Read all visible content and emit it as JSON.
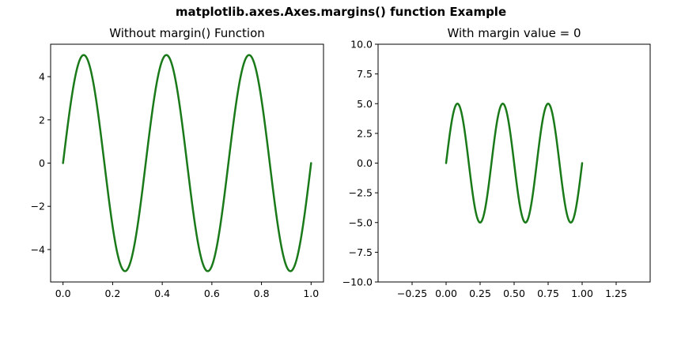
{
  "figure": {
    "suptitle": "matplotlib.axes.Axes.margins() function Example"
  },
  "colors": {
    "line": "#1a7a1a",
    "background": "#ffffff"
  },
  "chart_data": [
    {
      "type": "line",
      "title": "Without margin() Function",
      "xlabel": "",
      "ylabel": "",
      "xlim": [
        -0.05,
        1.05
      ],
      "ylim": [
        -5.5,
        5.5
      ],
      "xticks": [
        0.0,
        0.2,
        0.4,
        0.6,
        0.8,
        1.0
      ],
      "xtick_labels": [
        "0.0",
        "0.2",
        "0.4",
        "0.6",
        "0.8",
        "1.0"
      ],
      "yticks": [
        -4,
        -2,
        0,
        2,
        4
      ],
      "ytick_labels": [
        "−4",
        "−2",
        "0",
        "2",
        "4"
      ],
      "grid": false,
      "series": [
        {
          "function": "5*sin(6*pi*x)",
          "x_range": [
            0,
            1
          ],
          "color": "#1a7a1a"
        }
      ]
    },
    {
      "type": "line",
      "title": "With margin value = 0",
      "xlabel": "",
      "ylabel": "",
      "xlim": [
        -0.5,
        1.5
      ],
      "ylim": [
        -10,
        10
      ],
      "xticks": [
        -0.25,
        0.0,
        0.25,
        0.5,
        0.75,
        1.0,
        1.25
      ],
      "xtick_labels": [
        "−0.25",
        "0.00",
        "0.25",
        "0.50",
        "0.75",
        "1.00",
        "1.25"
      ],
      "yticks": [
        -10,
        -7.5,
        -5,
        -2.5,
        0,
        2.5,
        5,
        7.5,
        10
      ],
      "ytick_labels": [
        "−10.0",
        "−7.5",
        "−5.0",
        "−2.5",
        "0.0",
        "2.5",
        "5.0",
        "7.5",
        "10.0"
      ],
      "grid": false,
      "series": [
        {
          "function": "5*sin(6*pi*x)",
          "x_range": [
            0,
            1
          ],
          "color": "#1a7a1a"
        }
      ]
    }
  ]
}
